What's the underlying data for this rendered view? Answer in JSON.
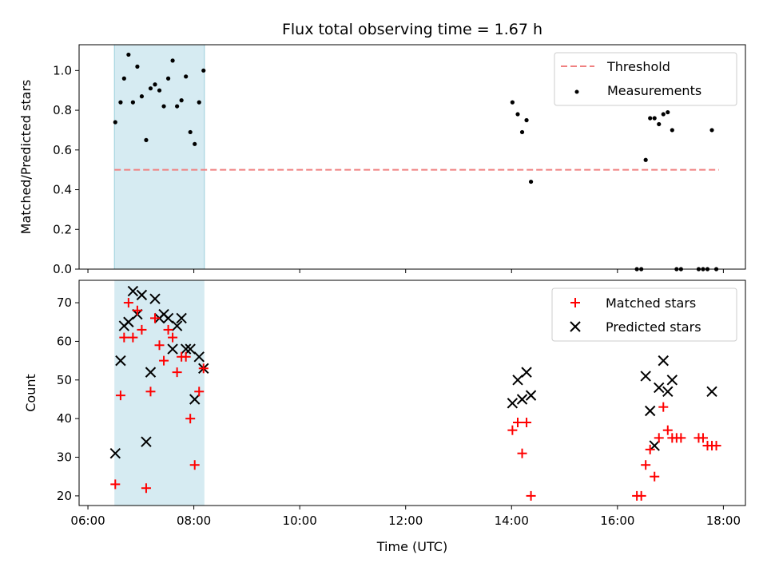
{
  "chart_data": {
    "type": "scatter",
    "title": "Flux total observing time = 1.67 h",
    "xlabel": "Time (UTC)",
    "xlim": [
      "05:50",
      "18:25"
    ],
    "x_ticks": [
      "06:00",
      "08:00",
      "10:00",
      "12:00",
      "14:00",
      "16:00",
      "18:00"
    ],
    "shaded_span": [
      "06:30",
      "08:12"
    ],
    "colors": {
      "threshold": "#f08080",
      "measurements": "#000000",
      "matched": "#ff0000",
      "predicted": "#000000",
      "span": "#add8e6"
    },
    "top": {
      "ylabel": "Matched/Predicted stars",
      "ylim": [
        0,
        1.13
      ],
      "y_ticks": [
        "0.0",
        "0.2",
        "0.4",
        "0.6",
        "0.8",
        "1.0"
      ],
      "legend": {
        "placement": "upper right",
        "entries": [
          "Threshold",
          "Measurements"
        ]
      },
      "threshold": {
        "name": "Threshold",
        "value": 0.5,
        "x_range": [
          "06:30",
          "17:55"
        ]
      },
      "series": [
        {
          "name": "Measurements",
          "x": [
            "06:31",
            "06:37",
            "06:41",
            "06:46",
            "06:51",
            "06:56",
            "07:01",
            "07:06",
            "07:11",
            "07:16",
            "07:21",
            "07:26",
            "07:31",
            "07:36",
            "07:41",
            "07:46",
            "07:51",
            "07:56",
            "08:01",
            "08:06",
            "08:11",
            "14:01",
            "14:07",
            "14:12",
            "14:17",
            "14:22",
            "16:22",
            "16:27",
            "16:32",
            "16:37",
            "16:42",
            "16:47",
            "16:52",
            "16:57",
            "17:02",
            "17:07",
            "17:12",
            "17:32",
            "17:37",
            "17:42",
            "17:47",
            "17:52"
          ],
          "y": [
            0.74,
            0.84,
            0.96,
            1.08,
            0.84,
            1.02,
            0.87,
            0.65,
            0.91,
            0.93,
            0.9,
            0.82,
            0.96,
            1.05,
            0.82,
            0.85,
            0.97,
            0.69,
            0.63,
            0.84,
            1.0,
            0.84,
            0.78,
            0.69,
            0.75,
            0.44,
            0,
            0,
            0.55,
            0.76,
            0.76,
            0.73,
            0.78,
            0.79,
            0.7,
            0,
            0,
            0,
            0,
            0,
            0.7,
            0
          ]
        }
      ]
    },
    "bottom": {
      "ylabel": "Count",
      "ylim": [
        17.5,
        75.8
      ],
      "y_ticks": [
        "20",
        "30",
        "40",
        "50",
        "60",
        "70"
      ],
      "legend": {
        "placement": "upper right",
        "entries": [
          "Matched stars",
          "Predicted stars"
        ]
      },
      "series": [
        {
          "name": "Matched stars",
          "x": [
            "06:31",
            "06:37",
            "06:41",
            "06:46",
            "06:51",
            "06:56",
            "07:01",
            "07:06",
            "07:11",
            "07:16",
            "07:21",
            "07:26",
            "07:31",
            "07:36",
            "07:41",
            "07:46",
            "07:51",
            "07:56",
            "08:01",
            "08:06",
            "08:11",
            "14:01",
            "14:07",
            "14:12",
            "14:17",
            "14:22",
            "16:22",
            "16:27",
            "16:32",
            "16:37",
            "16:42",
            "16:47",
            "16:52",
            "16:57",
            "17:02",
            "17:07",
            "17:12",
            "17:32",
            "17:37",
            "17:42",
            "17:47",
            "17:52"
          ],
          "y": [
            23,
            46,
            61,
            70,
            61,
            68,
            63,
            22,
            47,
            66,
            59,
            55,
            63,
            61,
            52,
            56,
            56,
            40,
            28,
            47,
            53,
            37,
            39,
            31,
            39,
            20,
            20,
            20,
            28,
            32,
            25,
            35,
            43,
            37,
            35,
            35,
            35,
            35,
            35,
            33,
            33,
            33
          ]
        },
        {
          "name": "Predicted stars",
          "x": [
            "06:31",
            "06:37",
            "06:41",
            "06:46",
            "06:51",
            "06:56",
            "07:01",
            "07:06",
            "07:11",
            "07:16",
            "07:21",
            "07:26",
            "07:31",
            "07:36",
            "07:41",
            "07:46",
            "07:51",
            "07:56",
            "08:01",
            "08:06",
            "08:11",
            "14:01",
            "14:07",
            "14:12",
            "14:17",
            "14:22",
            "16:32",
            "16:37",
            "16:42",
            "16:47",
            "16:52",
            "16:57",
            "17:02",
            "17:47"
          ],
          "y": [
            31,
            55,
            64,
            65,
            73,
            67,
            72,
            34,
            52,
            71,
            66,
            67,
            66,
            58,
            64,
            66,
            58,
            58,
            45,
            56,
            53,
            44,
            50,
            45,
            52,
            46,
            51,
            42,
            33,
            48,
            55,
            47,
            50,
            47
          ]
        }
      ]
    }
  }
}
